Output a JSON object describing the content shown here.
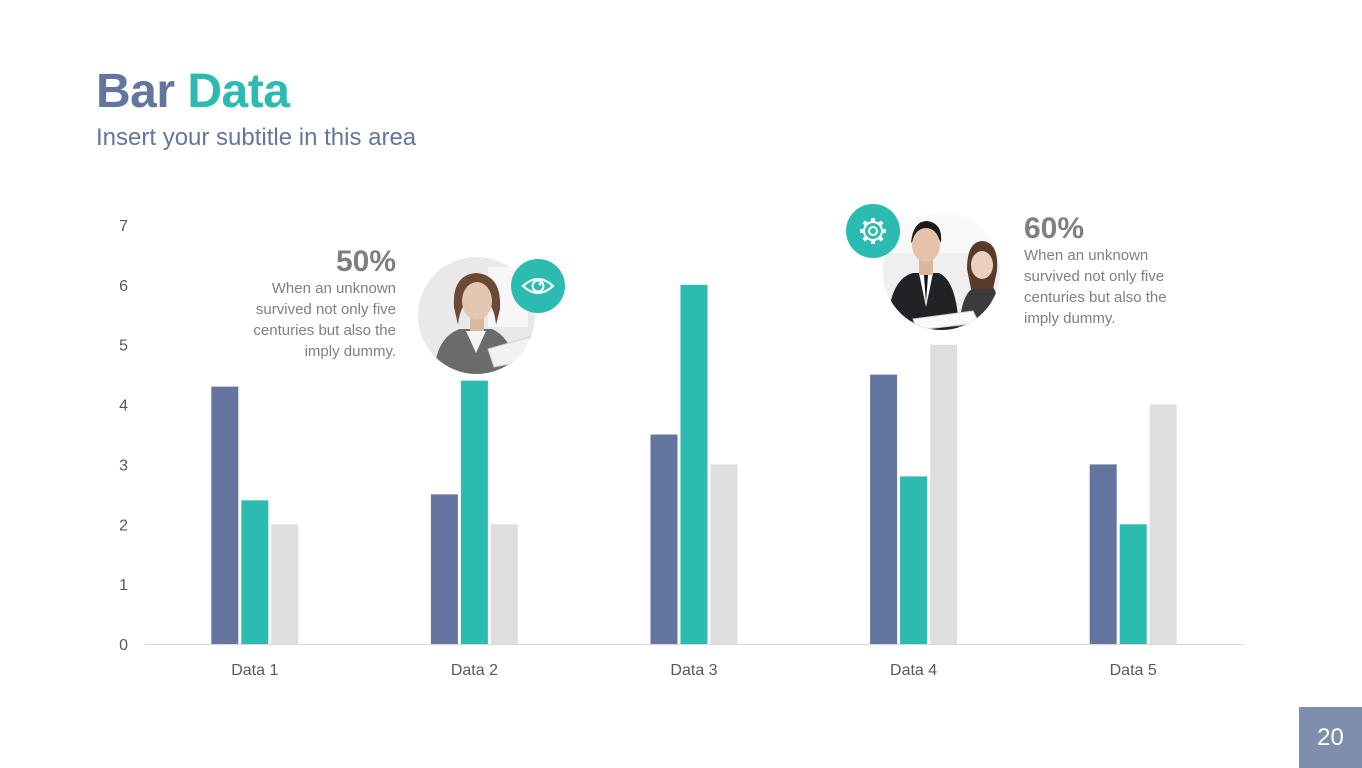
{
  "slide": {
    "title_part1": "Bar",
    "title_part2": "Data",
    "subtitle": "Insert your subtitle in this area",
    "page_number": "20"
  },
  "callouts": [
    {
      "percent": "50%",
      "lines": [
        "When an unknown",
        "survived not only five",
        "centuries  but also the",
        "imply dummy."
      ],
      "icon": "eye-icon"
    },
    {
      "percent": "60%",
      "lines": [
        "When an unknown",
        "survived not only five",
        "centuries  but also the",
        "imply dummy."
      ],
      "icon": "gear-icon"
    }
  ],
  "colors": {
    "accent_blue": "#64769f",
    "accent_teal": "#2bbbb1",
    "accent_gray": "#dedede",
    "text_gray": "#7f7f7f",
    "page_badge": "#7d8fad"
  },
  "chart_data": {
    "type": "bar",
    "categories": [
      "Data 1",
      "Data 2",
      "Data 3",
      "Data 4",
      "Data 5"
    ],
    "series": [
      {
        "values": [
          4.3,
          2.5,
          3.5,
          4.5,
          3.0
        ],
        "color": "#64769f"
      },
      {
        "values": [
          2.4,
          4.4,
          6.0,
          2.8,
          2.0
        ],
        "color": "#2bbbb1"
      },
      {
        "values": [
          2.0,
          2.0,
          3.0,
          5.0,
          4.0
        ],
        "color": "#dedede"
      }
    ],
    "yticks": [
      "0",
      "1",
      "2",
      "3",
      "4",
      "5",
      "6",
      "7"
    ],
    "ylim": [
      0,
      7
    ],
    "grid": false,
    "legend": "none"
  }
}
